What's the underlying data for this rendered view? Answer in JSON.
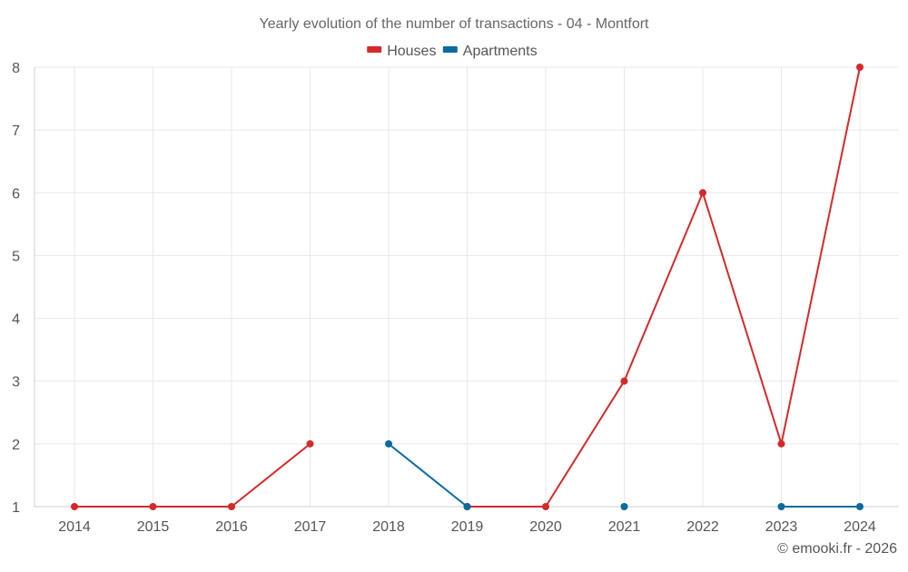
{
  "chart_data": {
    "type": "line",
    "title": "Yearly evolution of the number of transactions - 04 - Montfort",
    "categories": [
      "2014",
      "2015",
      "2016",
      "2017",
      "2018",
      "2019",
      "2020",
      "2021",
      "2022",
      "2023",
      "2024"
    ],
    "ylim": [
      1,
      8
    ],
    "yticks": [
      "1",
      "2",
      "3",
      "4",
      "5",
      "6",
      "7",
      "8"
    ],
    "xlabel": "",
    "ylabel": "",
    "grid": true,
    "legend_position": "top-center",
    "series": [
      {
        "name": "Houses",
        "color": "#d42a2a",
        "values": [
          1,
          1,
          1,
          2,
          null,
          1,
          1,
          3,
          6,
          2,
          8
        ]
      },
      {
        "name": "Apartments",
        "color": "#0b6a9e",
        "values": [
          null,
          null,
          null,
          null,
          2,
          1,
          null,
          1,
          null,
          1,
          1
        ]
      }
    ]
  },
  "credit": "© emooki.fr - 2026"
}
